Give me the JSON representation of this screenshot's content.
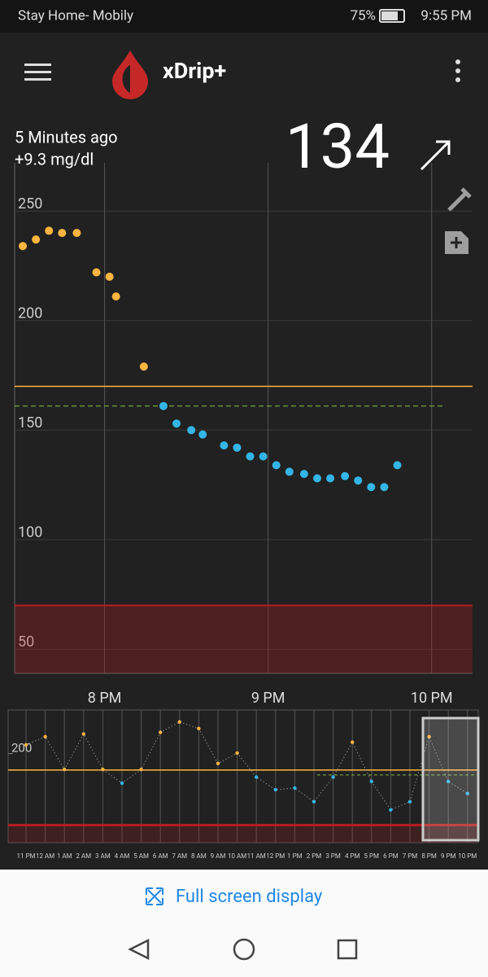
{
  "status_bar": {
    "carrier": "Stay Home- Mobily",
    "battery": "75%",
    "time": "9:55 PM"
  },
  "app_bar": {
    "title": "xDrip+"
  },
  "reading": {
    "age": "5 Minutes ago",
    "delta": "+9.3 mg/dl",
    "value": 134
  },
  "main_chart": {
    "type": "scatter",
    "x": [
      19.5,
      19.58,
      19.66,
      19.74,
      19.83,
      19.95,
      20.03,
      20.07,
      20.24,
      20.36,
      20.44,
      20.53,
      20.6,
      20.73,
      20.81,
      20.89,
      20.97,
      21.05,
      21.13,
      21.22,
      21.3,
      21.38,
      21.47,
      21.55,
      21.63,
      21.71,
      21.79
    ],
    "values": [
      234,
      237,
      241,
      240,
      240,
      222,
      220,
      211,
      179,
      161,
      153,
      150,
      148,
      143,
      142,
      138,
      138,
      134,
      131,
      130,
      128,
      128,
      129,
      127,
      124,
      124,
      134
    ],
    "xlim": [
      19.45,
      22.25
    ],
    "ylim": [
      39,
      272
    ],
    "xticks": [
      {
        "value": 20,
        "label": "8 PM"
      },
      {
        "value": 21,
        "label": "9 PM"
      },
      {
        "value": 22,
        "label": "10 PM"
      }
    ],
    "yticks": [
      50,
      100,
      150,
      200,
      250
    ],
    "high_line": 170,
    "target_line": 161,
    "low_line": 70,
    "high_color": "#fbb540",
    "in_range_color": "#33b5e5",
    "grid": true
  },
  "preview_chart": {
    "type": "line",
    "categories": [
      "11 PM",
      "12 AM",
      "1 AM",
      "2 AM",
      "3 AM",
      "4 AM",
      "5 AM",
      "6 AM",
      "7 AM",
      "8 AM",
      "9 AM",
      "10 AM",
      "11 AM",
      "12 PM",
      "1 PM",
      "2 PM",
      "3 PM",
      "4 PM",
      "5 PM",
      "6 PM",
      "7 PM",
      "8 PM",
      "9 PM",
      "10 PM"
    ],
    "values": [
      216,
      231,
      171,
      236,
      171,
      146,
      171,
      239,
      258,
      246,
      182,
      201,
      157,
      134,
      137,
      112,
      157,
      221,
      149,
      97,
      112,
      231,
      149,
      127
    ],
    "ylim": [
      37,
      280
    ],
    "yticks": [
      200
    ],
    "high_line": 170,
    "target_line": 161,
    "low_line": 70
  },
  "footer": {
    "button": "Full screen display"
  }
}
